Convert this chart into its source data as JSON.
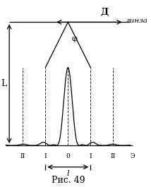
{
  "title": "Рис. 49",
  "top_label": "Д",
  "lens_label": "линза",
  "phi_label": "φ",
  "L_label": "L",
  "l_label": "l",
  "E_label": "Э",
  "order_labels": [
    "II",
    "I",
    "0",
    "I",
    "II"
  ],
  "order_positions": [
    -4.0,
    -2.0,
    0.0,
    2.0,
    4.0
  ],
  "figsize": [
    2.14,
    2.65
  ],
  "dpi": 100,
  "bg_color": "#ffffff",
  "line_color": "#000000"
}
